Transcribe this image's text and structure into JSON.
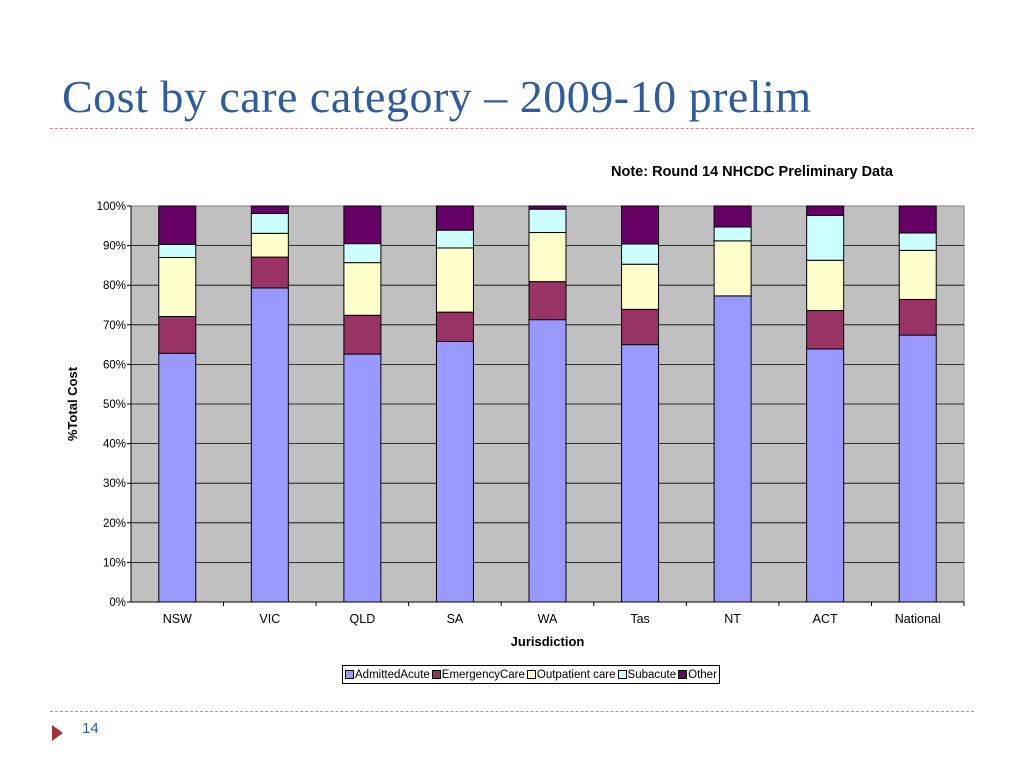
{
  "slide": {
    "title": "Cost by care category – 2009-10 prelim",
    "page_number": "14"
  },
  "chart_data": {
    "type": "bar",
    "stacked": true,
    "title": "Note: Round 14 NHCDC Preliminary Data",
    "xlabel": "Jurisdiction",
    "ylabel": "%Total Cost",
    "ylim": [
      0,
      100
    ],
    "yticks": [
      "0%",
      "10%",
      "20%",
      "30%",
      "40%",
      "50%",
      "60%",
      "70%",
      "80%",
      "90%",
      "100%"
    ],
    "grid": true,
    "legend_position": "bottom",
    "categories": [
      "NSW",
      "VIC",
      "QLD",
      "SA",
      "WA",
      "Tas",
      "NT",
      "ACT",
      "National"
    ],
    "series": [
      {
        "name": "AdmittedAcute",
        "color": "#9999FF",
        "values": [
          62.8,
          79.3,
          62.6,
          65.8,
          71.3,
          65.0,
          77.3,
          63.9,
          67.4
        ]
      },
      {
        "name": "EmergencyCare",
        "color": "#993366",
        "values": [
          9.3,
          7.8,
          9.8,
          7.4,
          9.6,
          8.9,
          0.0,
          9.7,
          9.0
        ]
      },
      {
        "name": "Outpatient care",
        "color": "#FFFFCC",
        "values": [
          14.9,
          6.0,
          13.3,
          16.2,
          12.4,
          11.4,
          13.9,
          12.7,
          12.4
        ]
      },
      {
        "name": "Subacute",
        "color": "#CCFFFF",
        "values": [
          3.3,
          5.0,
          4.8,
          4.5,
          5.9,
          5.1,
          3.5,
          11.3,
          4.4
        ]
      },
      {
        "name": "Other",
        "color": "#660066",
        "values": [
          9.7,
          1.9,
          9.5,
          6.1,
          0.8,
          9.6,
          5.3,
          2.4,
          6.8
        ]
      }
    ]
  }
}
